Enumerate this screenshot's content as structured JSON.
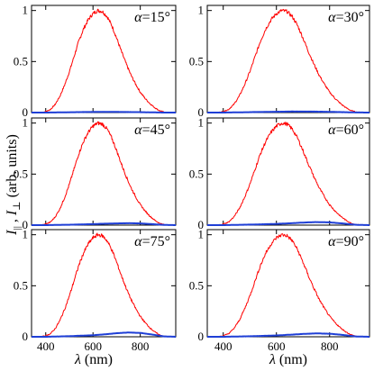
{
  "chart_data": {
    "type": "line",
    "ylabel": "I||, I⊥ (arb. units)",
    "ylabel_main": "I",
    "ylabel_sub1": "||",
    "ylabel_sep": " , ",
    "ylabel_sub2": "⊥",
    "ylabel_rest": " (arb. units)",
    "xlabel": "λ (nm)",
    "xlabel_var": "λ",
    "xlabel_unit": " (nm)",
    "xlim": [
      340,
      950
    ],
    "ylim": [
      0,
      1.05
    ],
    "x_ticks": [
      400,
      600,
      800
    ],
    "x_tick_labels": [
      "400",
      "600",
      "800"
    ],
    "y_ticks": [
      0,
      0.5,
      1
    ],
    "y_tick_labels": [
      "0",
      "0.5",
      "1"
    ],
    "grid": false,
    "colors": {
      "parallel": "#ff0000",
      "perpendicular": "#1f3fd6"
    },
    "parallel_x": [
      340,
      360,
      380,
      400,
      420,
      440,
      460,
      480,
      500,
      520,
      540,
      560,
      580,
      600,
      620,
      640,
      660,
      680,
      700,
      720,
      740,
      760,
      780,
      800,
      820,
      840,
      860,
      880,
      900,
      920,
      950
    ],
    "parallel_y": [
      0,
      0,
      0,
      0.01,
      0.03,
      0.08,
      0.16,
      0.27,
      0.4,
      0.55,
      0.7,
      0.82,
      0.91,
      0.97,
      1.0,
      0.99,
      0.94,
      0.85,
      0.73,
      0.6,
      0.48,
      0.37,
      0.28,
      0.2,
      0.14,
      0.09,
      0.05,
      0.02,
      0.005,
      0,
      0
    ],
    "panels": [
      {
        "label": "α=15°",
        "series": [
          {
            "name": "I||",
            "color": "#ff0000",
            "x": [
              340,
              360,
              380,
              400,
              420,
              440,
              460,
              480,
              500,
              520,
              540,
              560,
              580,
              600,
              620,
              640,
              660,
              680,
              700,
              720,
              740,
              760,
              780,
              800,
              820,
              840,
              860,
              880,
              900,
              920,
              950
            ],
            "y": [
              0,
              0,
              0,
              0.01,
              0.03,
              0.08,
              0.16,
              0.27,
              0.4,
              0.55,
              0.7,
              0.82,
              0.91,
              0.97,
              1.0,
              0.99,
              0.94,
              0.85,
              0.73,
              0.6,
              0.48,
              0.37,
              0.28,
              0.2,
              0.14,
              0.09,
              0.05,
              0.02,
              0.005,
              0,
              0
            ]
          },
          {
            "name": "I⊥",
            "color": "#1f3fd6",
            "x": [
              340,
              400,
              500,
              600,
              650,
              700,
              750,
              800,
              850,
              900,
              950
            ],
            "y": [
              0,
              0,
              0.003,
              0.006,
              0.007,
              0.006,
              0.005,
              0.004,
              0.002,
              0,
              0
            ]
          }
        ]
      },
      {
        "label": "α=30°",
        "series": [
          {
            "name": "I||",
            "color": "#ff0000",
            "x": [
              340,
              360,
              380,
              400,
              420,
              440,
              460,
              480,
              500,
              520,
              540,
              560,
              580,
              600,
              620,
              640,
              660,
              680,
              700,
              720,
              740,
              760,
              780,
              800,
              820,
              840,
              860,
              880,
              900,
              920,
              950
            ],
            "y": [
              0,
              0,
              0,
              0.01,
              0.03,
              0.08,
              0.16,
              0.27,
              0.4,
              0.55,
              0.7,
              0.82,
              0.91,
              0.97,
              1.0,
              0.99,
              0.94,
              0.85,
              0.73,
              0.6,
              0.48,
              0.37,
              0.28,
              0.2,
              0.14,
              0.09,
              0.05,
              0.02,
              0.005,
              0,
              0
            ]
          },
          {
            "name": "I⊥",
            "color": "#1f3fd6",
            "x": [
              340,
              400,
              500,
              600,
              650,
              700,
              750,
              800,
              850,
              900,
              950
            ],
            "y": [
              0,
              0,
              0.004,
              0.008,
              0.01,
              0.01,
              0.009,
              0.007,
              0.004,
              0.001,
              0
            ]
          }
        ]
      },
      {
        "label": "α=45°",
        "series": [
          {
            "name": "I||",
            "color": "#ff0000",
            "x": [
              340,
              360,
              380,
              400,
              420,
              440,
              460,
              480,
              500,
              520,
              540,
              560,
              580,
              600,
              620,
              640,
              660,
              680,
              700,
              720,
              740,
              760,
              780,
              800,
              820,
              840,
              860,
              880,
              900,
              920,
              950
            ],
            "y": [
              0,
              0,
              0,
              0.01,
              0.03,
              0.08,
              0.16,
              0.27,
              0.4,
              0.55,
              0.7,
              0.82,
              0.91,
              0.97,
              1.0,
              0.99,
              0.94,
              0.85,
              0.73,
              0.6,
              0.48,
              0.37,
              0.28,
              0.2,
              0.14,
              0.09,
              0.05,
              0.02,
              0.005,
              0,
              0
            ]
          },
          {
            "name": "I⊥",
            "color": "#1f3fd6",
            "x": [
              340,
              400,
              500,
              600,
              650,
              700,
              750,
              800,
              850,
              900,
              950
            ],
            "y": [
              0,
              0,
              0.004,
              0.01,
              0.014,
              0.017,
              0.019,
              0.017,
              0.01,
              0.002,
              0
            ]
          }
        ]
      },
      {
        "label": "α=60°",
        "series": [
          {
            "name": "I||",
            "color": "#ff0000",
            "x": [
              340,
              360,
              380,
              400,
              420,
              440,
              460,
              480,
              500,
              520,
              540,
              560,
              580,
              600,
              620,
              640,
              660,
              680,
              700,
              720,
              740,
              760,
              780,
              800,
              820,
              840,
              860,
              880,
              900,
              920,
              950
            ],
            "y": [
              0,
              0,
              0,
              0.01,
              0.03,
              0.08,
              0.16,
              0.27,
              0.4,
              0.55,
              0.7,
              0.82,
              0.91,
              0.97,
              1.0,
              0.99,
              0.94,
              0.85,
              0.73,
              0.6,
              0.48,
              0.37,
              0.28,
              0.2,
              0.14,
              0.09,
              0.05,
              0.02,
              0.005,
              0,
              0
            ]
          },
          {
            "name": "I⊥",
            "color": "#1f3fd6",
            "x": [
              340,
              400,
              500,
              600,
              650,
              700,
              750,
              800,
              850,
              900,
              950
            ],
            "y": [
              0,
              0,
              0.005,
              0.012,
              0.018,
              0.025,
              0.03,
              0.027,
              0.016,
              0.003,
              0
            ]
          }
        ]
      },
      {
        "label": "α=75°",
        "series": [
          {
            "name": "I||",
            "color": "#ff0000",
            "x": [
              340,
              360,
              380,
              400,
              420,
              440,
              460,
              480,
              500,
              520,
              540,
              560,
              580,
              600,
              620,
              640,
              660,
              680,
              700,
              720,
              740,
              760,
              780,
              800,
              820,
              840,
              860,
              880,
              900,
              920,
              950
            ],
            "y": [
              0,
              0,
              0,
              0.01,
              0.03,
              0.08,
              0.16,
              0.27,
              0.4,
              0.55,
              0.7,
              0.82,
              0.91,
              0.97,
              1.0,
              0.99,
              0.94,
              0.85,
              0.73,
              0.6,
              0.48,
              0.37,
              0.28,
              0.2,
              0.14,
              0.09,
              0.05,
              0.02,
              0.005,
              0,
              0
            ]
          },
          {
            "name": "I⊥",
            "color": "#1f3fd6",
            "x": [
              340,
              400,
              500,
              600,
              650,
              700,
              750,
              800,
              850,
              900,
              950
            ],
            "y": [
              0,
              0,
              0.006,
              0.015,
              0.024,
              0.035,
              0.042,
              0.038,
              0.022,
              0.004,
              0
            ]
          }
        ]
      },
      {
        "label": "α=90°",
        "series": [
          {
            "name": "I||",
            "color": "#ff0000",
            "x": [
              340,
              360,
              380,
              400,
              420,
              440,
              460,
              480,
              500,
              520,
              540,
              560,
              580,
              600,
              620,
              640,
              660,
              680,
              700,
              720,
              740,
              760,
              780,
              800,
              820,
              840,
              860,
              880,
              900,
              920,
              950
            ],
            "y": [
              0,
              0,
              0,
              0.01,
              0.03,
              0.08,
              0.16,
              0.27,
              0.4,
              0.55,
              0.7,
              0.82,
              0.91,
              0.97,
              1.0,
              0.99,
              0.94,
              0.85,
              0.73,
              0.6,
              0.48,
              0.37,
              0.28,
              0.2,
              0.14,
              0.09,
              0.05,
              0.02,
              0.005,
              0,
              0
            ]
          },
          {
            "name": "I⊥",
            "color": "#1f3fd6",
            "x": [
              340,
              400,
              500,
              600,
              650,
              700,
              750,
              800,
              850,
              900,
              950
            ],
            "y": [
              0,
              0,
              0.005,
              0.013,
              0.02,
              0.028,
              0.033,
              0.03,
              0.018,
              0.003,
              0
            ]
          }
        ]
      }
    ]
  }
}
